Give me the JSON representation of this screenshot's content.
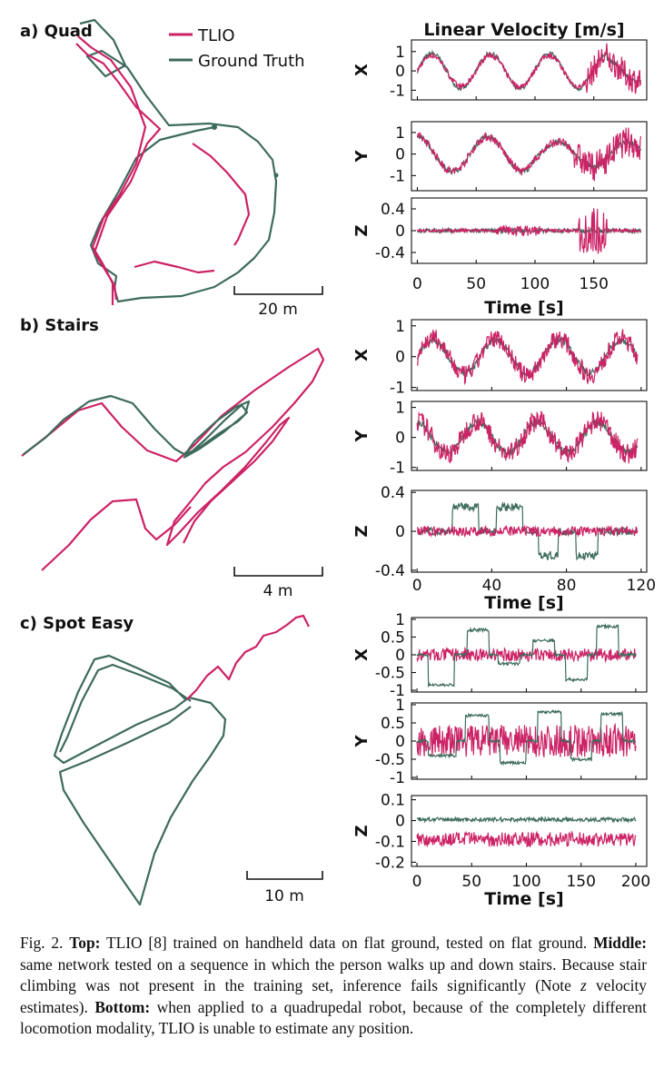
{
  "colors": {
    "tlio": "#cc2266",
    "gt": "#3d6b5b",
    "axis": "#111111"
  },
  "legend": {
    "tlio": "TLIO",
    "gt": "Ground Truth"
  },
  "right_title": "Linear Velocity [m/s]",
  "panels": [
    {
      "label": "a) Quad",
      "scalebar": "20 m"
    },
    {
      "label": "b) Stairs",
      "scalebar": "4 m"
    },
    {
      "label": "c) Spot Easy",
      "scalebar": "10 m"
    }
  ],
  "chart_data": [
    {
      "panel": "a) Quad",
      "type": "line",
      "xlabel": "Time [s]",
      "xlim": [
        -5,
        195
      ],
      "xticks": [
        0,
        50,
        100,
        150
      ],
      "series_names": [
        "TLIO",
        "Ground Truth"
      ],
      "axes": [
        {
          "ylabel": "X",
          "ylim": [
            -1.5,
            1.6
          ],
          "yticks": [
            1,
            0,
            -1
          ],
          "yticklabels": [
            "1",
            "0",
            "-1"
          ]
        },
        {
          "ylabel": "Y",
          "ylim": [
            -1.7,
            1.5
          ],
          "yticks": [
            1,
            0,
            -1
          ],
          "yticklabels": [
            "1",
            "0",
            "-1"
          ]
        },
        {
          "ylabel": "Z",
          "ylim": [
            -0.6,
            0.6
          ],
          "yticks": [
            0.4,
            0,
            -0.4
          ],
          "yticklabels": [
            "0.4",
            "0",
            "-0.4"
          ]
        }
      ]
    },
    {
      "panel": "b) Stairs",
      "type": "line",
      "xlabel": "Time [s]",
      "xlim": [
        -3,
        123
      ],
      "xticks": [
        0,
        40,
        80,
        120
      ],
      "series_names": [
        "TLIO",
        "Ground Truth"
      ],
      "axes": [
        {
          "ylabel": "X",
          "ylim": [
            -1.1,
            1.2
          ],
          "yticks": [
            1,
            0,
            -1
          ],
          "yticklabels": [
            "1",
            "0",
            "-1"
          ]
        },
        {
          "ylabel": "Y",
          "ylim": [
            -1.1,
            1.2
          ],
          "yticks": [
            1,
            0,
            -1
          ],
          "yticklabels": [
            "1",
            "0",
            "-1"
          ]
        },
        {
          "ylabel": "Z",
          "ylim": [
            -0.42,
            0.42
          ],
          "yticks": [
            0.4,
            0,
            -0.4
          ],
          "yticklabels": [
            "0.4",
            "0",
            "-0.4"
          ]
        }
      ]
    },
    {
      "panel": "c) Spot Easy",
      "type": "line",
      "xlabel": "Time [s]",
      "xlim": [
        -5,
        210
      ],
      "xticks": [
        0,
        50,
        100,
        150,
        200
      ],
      "series_names": [
        "TLIO",
        "Ground Truth"
      ],
      "axes": [
        {
          "ylabel": "X",
          "ylim": [
            -1.05,
            1.05
          ],
          "yticks": [
            1,
            0.5,
            0,
            -0.5,
            -1
          ],
          "yticklabels": [
            "1",
            "0.5",
            "0",
            "-0.5",
            "-1"
          ]
        },
        {
          "ylabel": "Y",
          "ylim": [
            -1.05,
            1.05
          ],
          "yticks": [
            1,
            0.5,
            0,
            -0.5,
            -1
          ],
          "yticklabels": [
            "1",
            "0.5",
            "0",
            "-0.5",
            "-1"
          ]
        },
        {
          "ylabel": "Z",
          "ylim": [
            -0.22,
            0.12
          ],
          "yticks": [
            0.1,
            0,
            -0.1,
            -0.2
          ],
          "yticklabels": [
            "0.1",
            "0",
            "-0.1",
            "-0.2"
          ]
        }
      ]
    }
  ],
  "caption": {
    "fig": "Fig. 2.",
    "top_label": "Top:",
    "top_text": "TLIO [8] trained on handheld data on flat ground, tested on flat ground.",
    "middle_label": "Middle:",
    "middle_text": "same network tested on a sequence in which the person walks up and down stairs. Because stair climbing was not present in the training set, inference fails significantly (Note",
    "var": "z",
    "middle_text2": "velocity estimates).",
    "bottom_label": "Bottom:",
    "bottom_text": "when applied to a quadrupedal robot, because of the completely different locomotion modality, TLIO is unable to estimate any position."
  }
}
